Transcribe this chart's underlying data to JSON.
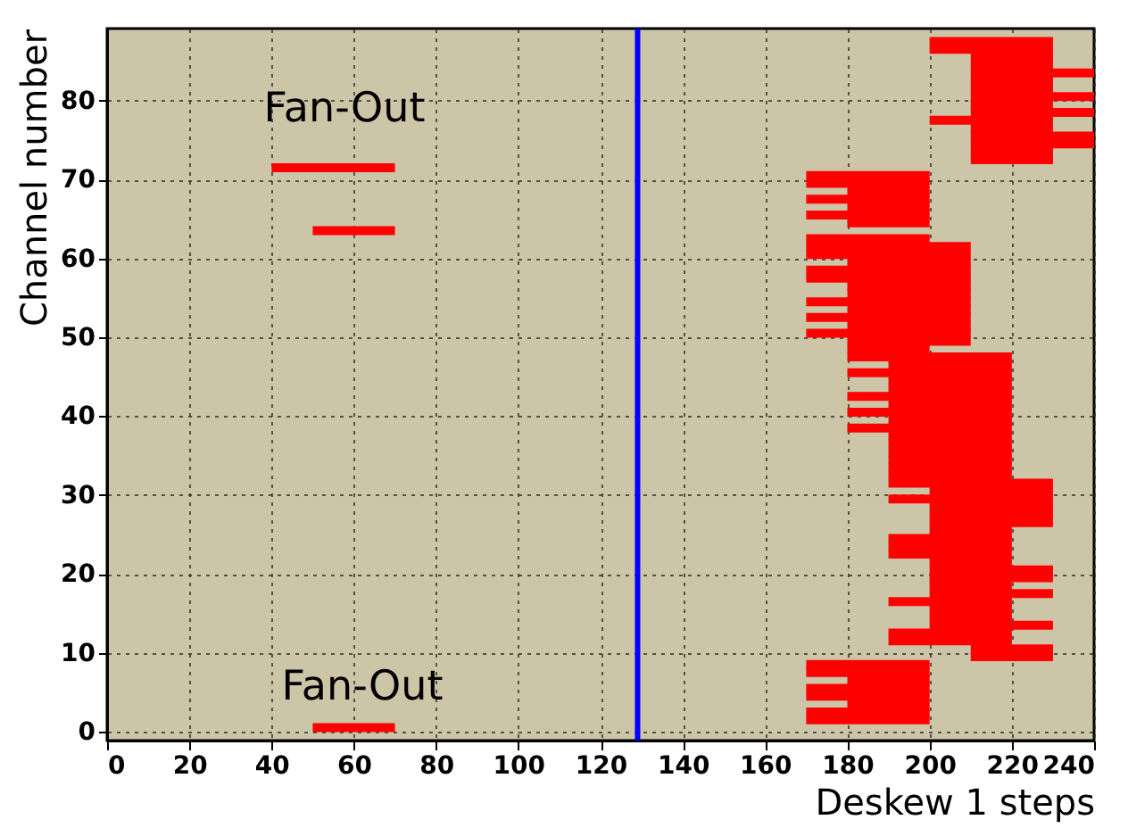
{
  "chart_data": {
    "type": "bar",
    "orientation": "horizontal",
    "xlabel": "Deskew 1 steps",
    "ylabel": "Channel number",
    "x": [
      0.5,
      1.5,
      2.5,
      3.5,
      4.5,
      5.5,
      6.5,
      7.5,
      8.5,
      9.5,
      10.5,
      11.5,
      12.5,
      13.5,
      14.5,
      15.5,
      16.5,
      17.5,
      18.5,
      19.5,
      20.5,
      21.5,
      22.5,
      23.5,
      24.5,
      25.5,
      26.5,
      27.5,
      28.5,
      29.5,
      30.5,
      31.5,
      32.5,
      33.5,
      34.5,
      35.5,
      36.5,
      37.5,
      38.5,
      39.5,
      40.5,
      41.5,
      42.5,
      43.5,
      44.5,
      45.5,
      46.5,
      47.5,
      48.5,
      49.5,
      50.5,
      51.5,
      52.5,
      53.5,
      54.5,
      55.5,
      56.5,
      57.5,
      58.5,
      59.5,
      60.5,
      61.5,
      62.5,
      63.5,
      64.5,
      65.5,
      66.5,
      67.5,
      68.5,
      69.5,
      70.5,
      71.5,
      72.5,
      73.5,
      74.5,
      75.5,
      76.5,
      77.5,
      78.5,
      79.5,
      80.5,
      81.5,
      82.5,
      83.5,
      84.5,
      85.5,
      86.5,
      87.5
    ],
    "base": [
      50,
      170,
      170,
      180,
      170,
      170,
      180,
      170,
      170,
      210,
      210,
      190,
      190,
      200,
      200,
      200,
      190,
      200,
      200,
      200,
      200,
      200,
      190,
      190,
      190,
      200,
      200,
      200,
      200,
      190,
      200,
      190,
      190,
      190,
      190,
      190,
      190,
      190,
      180,
      190,
      180,
      190,
      180,
      190,
      190,
      180,
      190,
      180,
      180,
      180,
      170,
      180,
      170,
      180,
      170,
      180,
      180,
      170,
      170,
      180,
      170,
      170,
      170,
      50,
      180,
      170,
      180,
      170,
      180,
      170,
      170,
      40,
      210,
      210,
      210,
      210,
      210,
      200,
      210,
      210,
      210,
      210,
      210,
      210,
      210,
      210,
      200,
      200
    ],
    "values": [
      20,
      30,
      30,
      20,
      30,
      30,
      20,
      30,
      30,
      20,
      20,
      30,
      30,
      30,
      20,
      20,
      30,
      30,
      20,
      30,
      30,
      20,
      30,
      30,
      30,
      20,
      30,
      30,
      30,
      40,
      30,
      40,
      30,
      30,
      30,
      30,
      30,
      30,
      40,
      30,
      40,
      30,
      40,
      30,
      30,
      40,
      30,
      40,
      20,
      30,
      40,
      30,
      40,
      30,
      40,
      30,
      30,
      40,
      40,
      30,
      40,
      40,
      30,
      20,
      20,
      30,
      20,
      30,
      20,
      30,
      30,
      30,
      20,
      20,
      30,
      30,
      20,
      30,
      30,
      20,
      30,
      20,
      20,
      30,
      20,
      20,
      30,
      30
    ],
    "color": "#ff0000",
    "xlim": [
      0,
      240
    ],
    "xticks": [
      0,
      20,
      40,
      60,
      80,
      100,
      120,
      140,
      160,
      180,
      200,
      220,
      240
    ],
    "ylim": [
      0,
      88
    ],
    "yticks": [
      0,
      10,
      20,
      30,
      40,
      50,
      60,
      70,
      80
    ],
    "grid": true,
    "ref_lines": [
      {
        "axis": "x",
        "value": 129,
        "color": "#0000ff"
      }
    ],
    "annotations": [
      "Fan-Out",
      "Fan-Out"
    ]
  }
}
